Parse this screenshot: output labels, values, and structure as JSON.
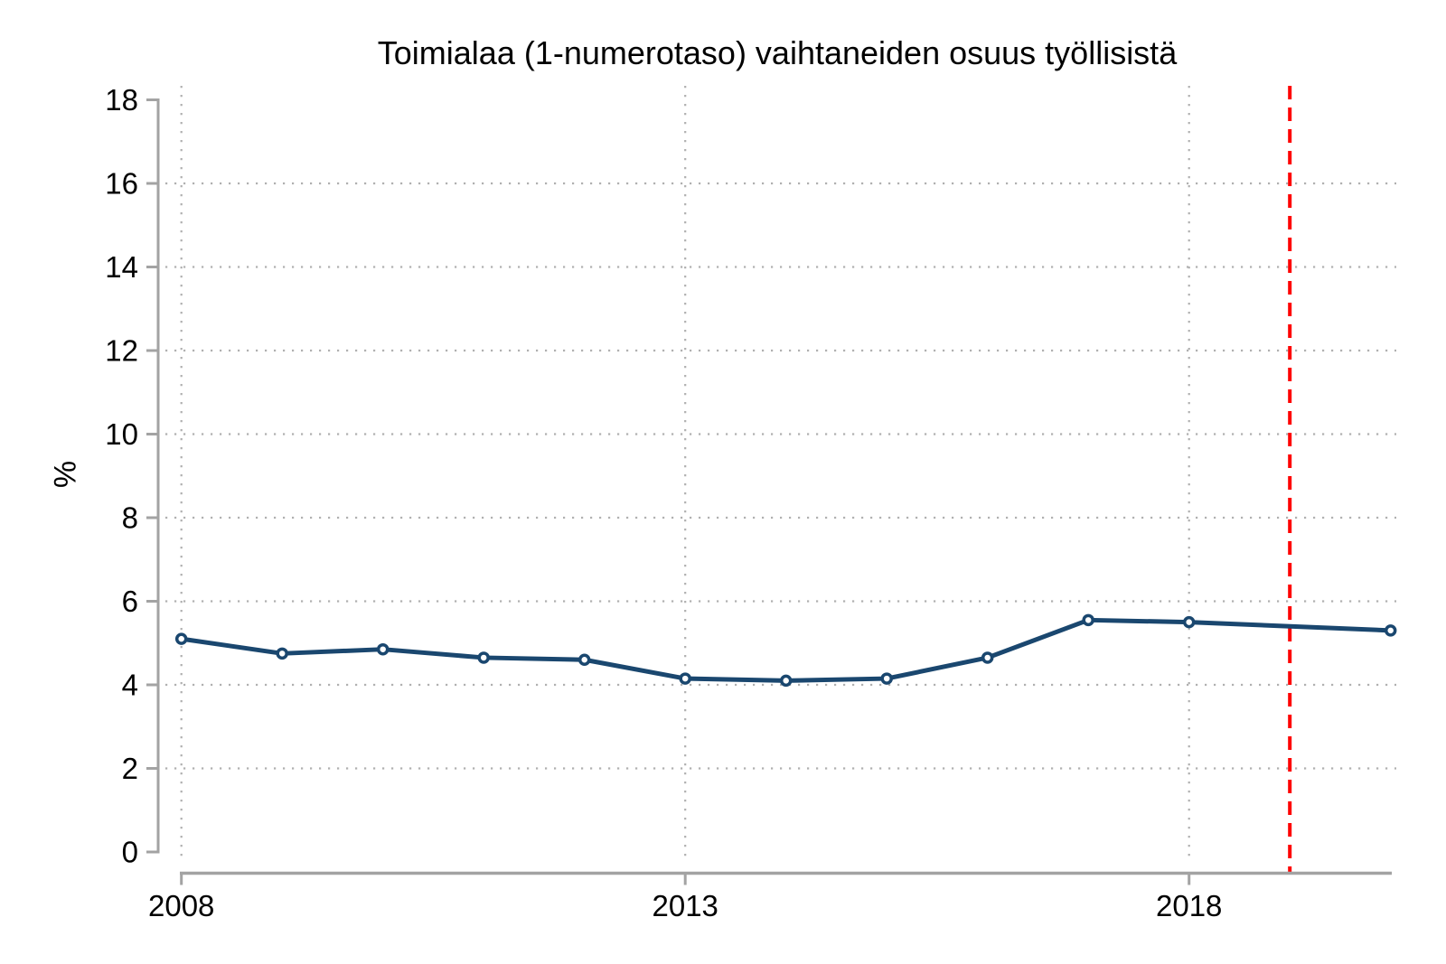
{
  "chart_data": {
    "type": "line",
    "title": "Toimialaa (1-numerotaso) vaihtaneiden osuus työllisistä",
    "xlabel": "",
    "ylabel": "%",
    "x": [
      2008,
      2009,
      2010,
      2011,
      2012,
      2013,
      2014,
      2015,
      2016,
      2017,
      2018,
      2020
    ],
    "values": [
      5.1,
      4.75,
      4.85,
      4.65,
      4.6,
      4.15,
      4.1,
      4.15,
      4.65,
      5.55,
      5.5,
      5.3
    ],
    "xlim": [
      2008,
      2020
    ],
    "ylim": [
      0,
      18
    ],
    "xticks": [
      2008,
      2013,
      2018
    ],
    "yticks": [
      0,
      2,
      4,
      6,
      8,
      10,
      12,
      14,
      16,
      18
    ],
    "grid": "dotted",
    "legend": "none",
    "marker": "hollow-circle",
    "reference_line": {
      "x": 2019,
      "style": "dashed",
      "orientation": "vertical"
    },
    "colors": {
      "line": "#1a476f",
      "marker_fill": "#ffffff",
      "reference": "#fe0000",
      "axis": "#a3a3a3",
      "grid": "#b0b0b0",
      "text": "#000000",
      "background": "#ffffff"
    }
  }
}
